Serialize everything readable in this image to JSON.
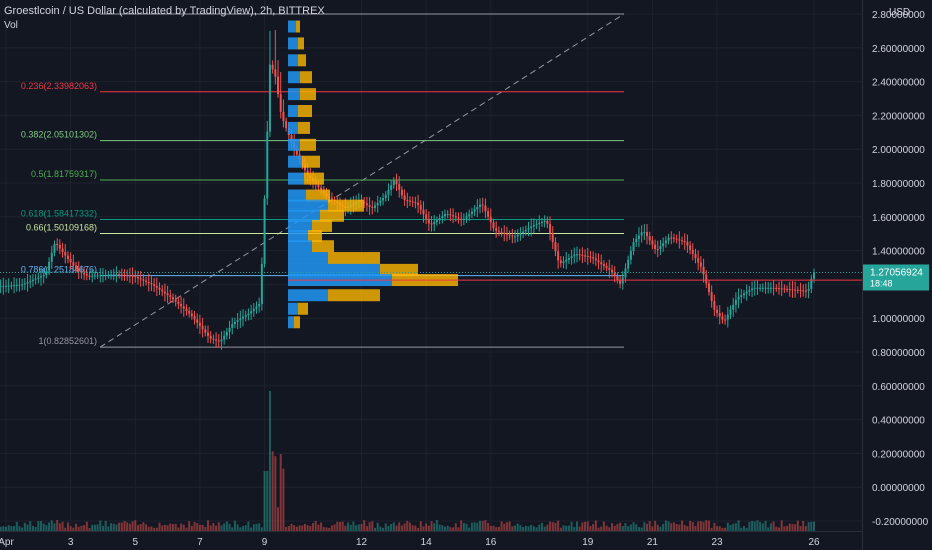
{
  "header": {
    "title": "Groestlcoin / US Dollar (calculated by TradingView), 2h, BITTREX",
    "volume_label": "Vol"
  },
  "chart_data": {
    "type": "candlestick",
    "title": "Groestlcoin / US Dollar (calculated by TradingView), 2h, BITTREX",
    "currency": "USD",
    "ylim": [
      -0.2,
      2.8
    ],
    "y_ticks": [
      "2.80000000",
      "2.60000000",
      "2.40000000",
      "2.20000000",
      "2.00000000",
      "1.80000000",
      "1.60000000",
      "1.40000000",
      "1.20000000",
      "1.00000000",
      "0.80000000",
      "0.60000000",
      "0.40000000",
      "0.20000000",
      "0.00000000",
      "-0.20000000"
    ],
    "x_ticks": [
      {
        "label": "Apr",
        "day": 1
      },
      {
        "label": "3",
        "day": 3
      },
      {
        "label": "5",
        "day": 5
      },
      {
        "label": "7",
        "day": 7
      },
      {
        "label": "9",
        "day": 9
      },
      {
        "label": "12",
        "day": 12
      },
      {
        "label": "14",
        "day": 14
      },
      {
        "label": "16",
        "day": 16
      },
      {
        "label": "19",
        "day": 19
      },
      {
        "label": "21",
        "day": 21
      },
      {
        "label": "23",
        "day": 23
      },
      {
        "label": "26",
        "day": 26
      }
    ],
    "last_price": "1.27056924",
    "countdown": "18:48",
    "fib_levels": [
      {
        "ratio": "0.236",
        "label": "0.236(2.33982063)",
        "price": 2.33982063,
        "color": "#f23645"
      },
      {
        "ratio": "0.382",
        "label": "0.382(2.05101302)",
        "price": 2.05101302,
        "color": "#81c784"
      },
      {
        "ratio": "0.5",
        "label": "0.5(1.81759317)",
        "price": 1.81759317,
        "color": "#4caf50"
      },
      {
        "ratio": "0.618",
        "label": "0.618(1.58417332)",
        "price": 1.58417332,
        "color": "#089981"
      },
      {
        "ratio": "0.66",
        "label": "0.66(1.50109168)",
        "price": 1.50109168,
        "color": "#c8e6a0"
      },
      {
        "ratio": "0.786",
        "label": "0.786(1.25184676)",
        "price": 1.25184676,
        "color": "#64b5f6"
      },
      {
        "ratio": "1",
        "label": "1(0.82852601)",
        "price": 0.82852601,
        "color": "#9598a1"
      }
    ],
    "top_level_price": 2.8,
    "poc_price": 1.225,
    "price_path": [
      [
        0.0,
        1.18
      ],
      [
        1.0,
        1.19
      ],
      [
        1.6,
        1.2
      ],
      [
        2.3,
        1.26
      ],
      [
        2.6,
        1.45
      ],
      [
        3.0,
        1.35
      ],
      [
        3.3,
        1.28
      ],
      [
        3.6,
        1.25
      ],
      [
        4.5,
        1.26
      ],
      [
        5.0,
        1.25
      ],
      [
        5.6,
        1.2
      ],
      [
        6.2,
        1.12
      ],
      [
        6.8,
        1.02
      ],
      [
        7.4,
        0.88
      ],
      [
        7.7,
        0.86
      ],
      [
        8.1,
        0.97
      ],
      [
        8.6,
        1.03
      ],
      [
        8.95,
        1.09
      ],
      [
        9.05,
        1.55
      ],
      [
        9.25,
        2.5
      ],
      [
        9.4,
        2.45
      ],
      [
        9.6,
        2.2
      ],
      [
        10.0,
        2.0
      ],
      [
        10.4,
        1.85
      ],
      [
        11.0,
        1.72
      ],
      [
        11.6,
        1.65
      ],
      [
        12.0,
        1.7
      ],
      [
        12.4,
        1.65
      ],
      [
        12.8,
        1.72
      ],
      [
        13.1,
        1.82
      ],
      [
        13.4,
        1.7
      ],
      [
        13.8,
        1.68
      ],
      [
        14.2,
        1.55
      ],
      [
        14.7,
        1.62
      ],
      [
        15.2,
        1.58
      ],
      [
        15.8,
        1.68
      ],
      [
        16.2,
        1.52
      ],
      [
        16.8,
        1.48
      ],
      [
        17.4,
        1.55
      ],
      [
        17.8,
        1.58
      ],
      [
        18.2,
        1.32
      ],
      [
        18.7,
        1.38
      ],
      [
        19.2,
        1.36
      ],
      [
        19.8,
        1.28
      ],
      [
        20.1,
        1.2
      ],
      [
        20.5,
        1.45
      ],
      [
        20.8,
        1.52
      ],
      [
        21.2,
        1.4
      ],
      [
        21.6,
        1.48
      ],
      [
        22.1,
        1.45
      ],
      [
        22.6,
        1.3
      ],
      [
        23.0,
        1.05
      ],
      [
        23.3,
        0.98
      ],
      [
        23.7,
        1.12
      ],
      [
        24.2,
        1.18
      ],
      [
        24.8,
        1.18
      ],
      [
        25.4,
        1.17
      ],
      [
        25.9,
        1.16
      ],
      [
        26.05,
        1.27
      ]
    ],
    "volume_profile": [
      {
        "price": 2.72,
        "up": 0.04,
        "down": 0.02
      },
      {
        "price": 2.62,
        "up": 0.05,
        "down": 0.03
      },
      {
        "price": 2.52,
        "up": 0.05,
        "down": 0.04
      },
      {
        "price": 2.42,
        "up": 0.06,
        "down": 0.06
      },
      {
        "price": 2.32,
        "up": 0.06,
        "down": 0.08
      },
      {
        "price": 2.22,
        "up": 0.05,
        "down": 0.07
      },
      {
        "price": 2.12,
        "up": 0.05,
        "down": 0.06
      },
      {
        "price": 2.02,
        "up": 0.06,
        "down": 0.08
      },
      {
        "price": 1.92,
        "up": 0.07,
        "down": 0.09
      },
      {
        "price": 1.82,
        "up": 0.08,
        "down": 0.1
      },
      {
        "price": 1.72,
        "up": 0.09,
        "down": 0.12
      },
      {
        "price": 1.66,
        "up": 0.2,
        "down": 0.18
      },
      {
        "price": 1.6,
        "up": 0.16,
        "down": 0.12
      },
      {
        "price": 1.54,
        "up": 0.12,
        "down": 0.1
      },
      {
        "price": 1.48,
        "up": 0.1,
        "down": 0.07
      },
      {
        "price": 1.42,
        "up": 0.12,
        "down": 0.11
      },
      {
        "price": 1.35,
        "up": 0.2,
        "down": 0.26
      },
      {
        "price": 1.28,
        "up": 0.46,
        "down": 0.19
      },
      {
        "price": 1.22,
        "up": 0.52,
        "down": 0.33
      },
      {
        "price": 1.13,
        "up": 0.2,
        "down": 0.26
      },
      {
        "price": 1.05,
        "up": 0.05,
        "down": 0.05
      },
      {
        "price": 0.97,
        "up": 0.03,
        "down": 0.03
      }
    ]
  }
}
